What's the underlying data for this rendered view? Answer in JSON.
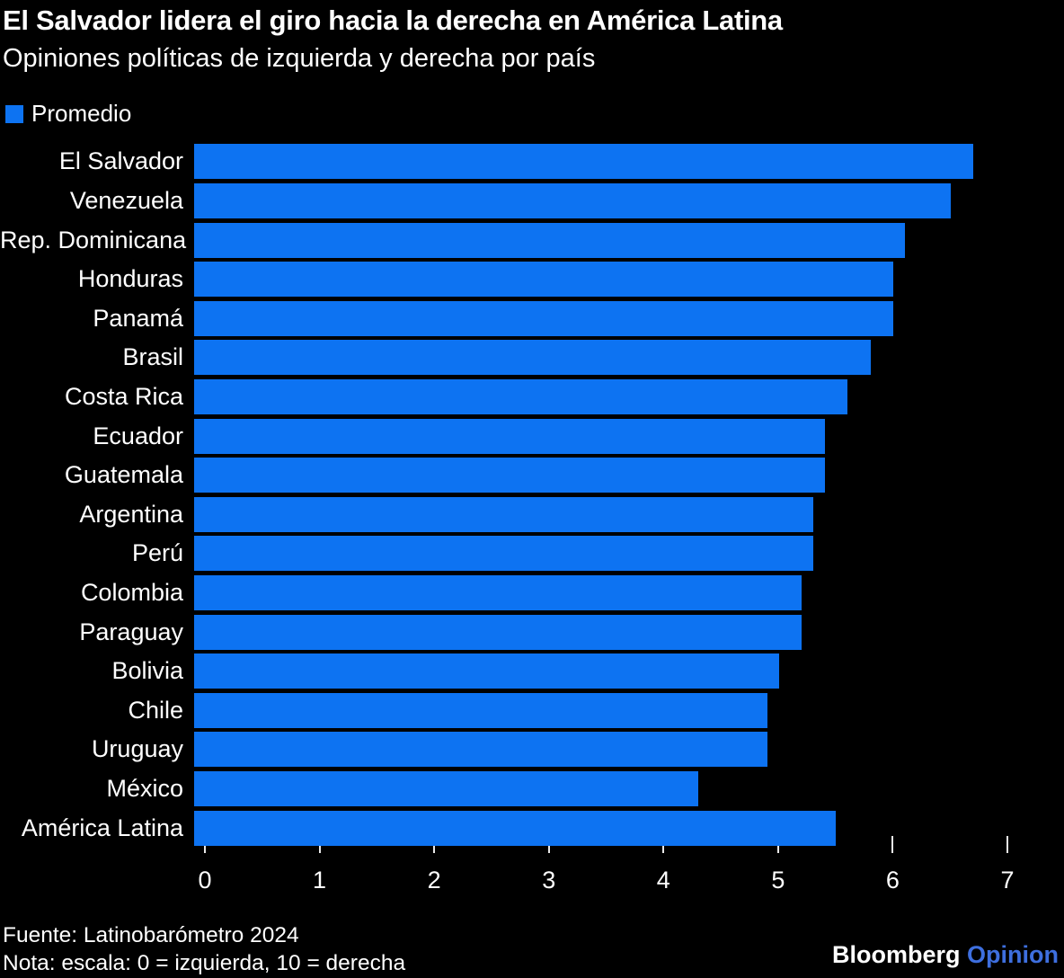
{
  "chart_data": {
    "type": "bar",
    "orientation": "horizontal",
    "title": "El Salvador lidera el giro hacia la derecha en América Latina",
    "subtitle": "Opiniones políticas de izquierda y derecha por país",
    "legend_label": "Promedio",
    "series_name": "Promedio",
    "categories": [
      "El Salvador",
      "Venezuela",
      "Rep. Dominicana",
      "Honduras",
      "Panamá",
      "Brasil",
      "Costa Rica",
      "Ecuador",
      "Guatemala",
      "Argentina",
      "Perú",
      "Colombia",
      "Paraguay",
      "Bolivia",
      "Chile",
      "Uruguay",
      "México",
      "América Latina"
    ],
    "values": [
      6.8,
      6.6,
      6.2,
      6.1,
      6.1,
      5.9,
      5.7,
      5.5,
      5.5,
      5.4,
      5.4,
      5.3,
      5.3,
      5.1,
      5.0,
      5.0,
      4.4,
      5.6
    ],
    "xlabel": "",
    "ylabel": "",
    "xlim": [
      0,
      7
    ],
    "xticks": [
      0,
      1,
      2,
      3,
      4,
      5,
      6,
      7
    ],
    "grid": false,
    "legend_position": "top-left"
  },
  "colors": {
    "background": "#000000",
    "bar": "#0d73f2",
    "text": "#ffffff",
    "tick": "#e9e9e9",
    "brand_opinion": "#3e6fdf"
  },
  "footer": {
    "source": "Fuente: Latinobarómetro 2024",
    "note": "Nota: escala: 0 = izquierda, 10 = derecha",
    "brand_primary": "Bloomberg",
    "brand_secondary": "Opinion"
  }
}
